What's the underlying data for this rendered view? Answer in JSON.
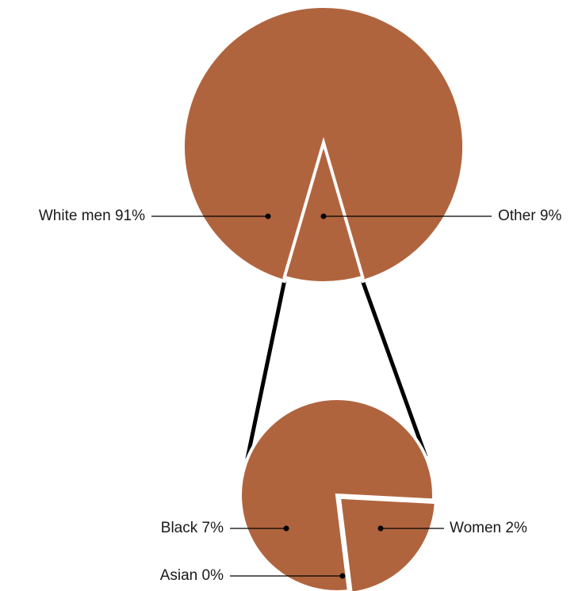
{
  "chart_data": {
    "type": "pie-of-pie",
    "color": "#b0643e",
    "main": {
      "categories": [
        "White men",
        "Other"
      ],
      "values": [
        91,
        9
      ],
      "value_labels": [
        "91%",
        "9%"
      ]
    },
    "detail": {
      "categories": [
        "Women",
        "Asian",
        "Black"
      ],
      "values": [
        2,
        0,
        7
      ],
      "value_labels": [
        "2%",
        "0%",
        "7%"
      ]
    }
  }
}
